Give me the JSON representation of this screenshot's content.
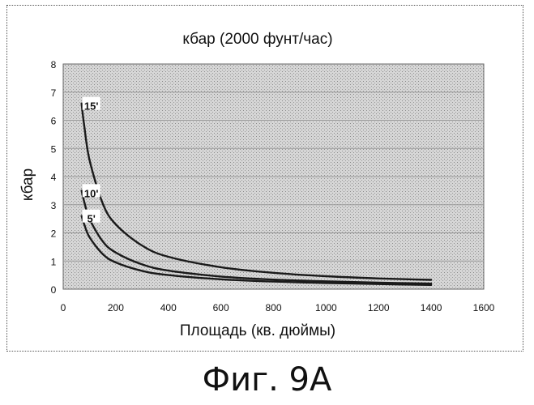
{
  "chart_data": {
    "type": "line",
    "title": "кбар (2000 фунт/час)",
    "xlabel": "Площадь (кв. дюймы)",
    "ylabel": "кбар",
    "xlim": [
      0,
      1600
    ],
    "ylim": [
      0,
      8
    ],
    "x_ticks": [
      "0",
      "200",
      "400",
      "600",
      "800",
      "1000",
      "1200",
      "1400",
      "1600"
    ],
    "y_ticks": [
      "0",
      "1",
      "2",
      "3",
      "4",
      "5",
      "6",
      "7",
      "8"
    ],
    "grid": true,
    "series": [
      {
        "name": "15'",
        "x": [
          70,
          80,
          100,
          150,
          200,
          300,
          400,
          600,
          800,
          1000,
          1200,
          1400
        ],
        "y": [
          6.6,
          5.8,
          4.6,
          3.05,
          2.3,
          1.55,
          1.15,
          0.78,
          0.58,
          0.46,
          0.38,
          0.33
        ]
      },
      {
        "name": "10'",
        "x": [
          70,
          80,
          100,
          150,
          200,
          300,
          400,
          600,
          800,
          1000,
          1200,
          1400
        ],
        "y": [
          3.5,
          3.1,
          2.5,
          1.7,
          1.3,
          0.88,
          0.66,
          0.45,
          0.34,
          0.28,
          0.23,
          0.2
        ]
      },
      {
        "name": "5'",
        "x": [
          70,
          80,
          100,
          150,
          200,
          300,
          400,
          600,
          800,
          1000,
          1200,
          1400
        ],
        "y": [
          2.6,
          2.3,
          1.85,
          1.25,
          0.95,
          0.65,
          0.5,
          0.35,
          0.27,
          0.22,
          0.18,
          0.15
        ]
      }
    ]
  },
  "colors": {
    "plot_background": "#d2d2d2",
    "grid": "#9a9a9a",
    "line": "#1a1a1a"
  },
  "caption": "Фиг. 9А"
}
